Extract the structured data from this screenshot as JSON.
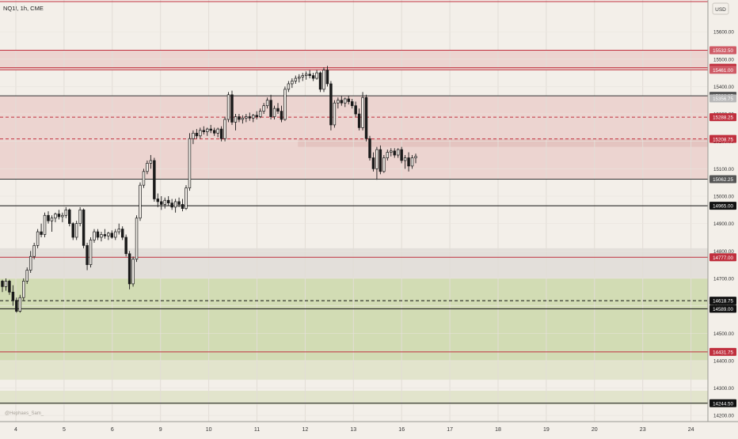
{
  "header": {
    "symbol_label": "NQ1!, 1h, CME",
    "currency": "USD"
  },
  "watermark": "@Hephaes_Sam_",
  "colors": {
    "background": "#f3efe9",
    "candle": "#1a1a1a",
    "resistance": "#c0303e",
    "support_line": "#222222",
    "red_zone": "#ecd4d0",
    "green_zone": "#d2dcb4",
    "light_green_zone": "#e2e4cc",
    "gray_zone": "#e6e2dc"
  },
  "chart_data": {
    "type": "candlestick",
    "title": "NQ1!, 1h, CME",
    "y_axis": {
      "unit": "USD",
      "range": [
        14195,
        15715
      ],
      "tick_labels": [
        "15600.00",
        "15500.00",
        "15400.00",
        "15300.00",
        "15200.00",
        "15100.00",
        "15000.00",
        "14900.00",
        "14800.00",
        "14700.00",
        "14600.00",
        "14500.00",
        "14400.00",
        "14300.00",
        "14200.00"
      ],
      "tick_values": [
        15600,
        15500,
        15400,
        15300,
        15200,
        15100,
        15000,
        14900,
        14800,
        14700,
        14600,
        14500,
        14400,
        14300,
        14200
      ]
    },
    "x_axis": {
      "tick_labels": [
        "4",
        "5",
        "6",
        "9",
        "10",
        "11",
        "12",
        "13",
        "16",
        "17",
        "18",
        "19",
        "20",
        "23",
        "24"
      ],
      "tick_positions_days": [
        0,
        1,
        2,
        3,
        4,
        5,
        6,
        7,
        8,
        9,
        10,
        11,
        12,
        13,
        14
      ]
    },
    "price_lines": [
      {
        "value": 15532.5,
        "label": "15532.50",
        "style": "solid",
        "color": "#c0303e",
        "tag_color": "#cf5b66"
      },
      {
        "value": 15468.75,
        "label": "15468.75",
        "style": "solid",
        "color": "#c0303e",
        "tag_color": "#c0303e"
      },
      {
        "value": 15461.0,
        "label": "15461.00",
        "style": "solid",
        "color": "#c0303e",
        "tag_color": "#cf5b66"
      },
      {
        "value": 15366.25,
        "label": "15366.25",
        "style": "solid",
        "color": "#333333",
        "tag_color": "#555555"
      },
      {
        "value": 15356.75,
        "label": "15356.75",
        "style": "none",
        "color": "#999999",
        "tag_color": "#b8b8b8"
      },
      {
        "value": 15288.25,
        "label": "15288.25",
        "style": "dashed",
        "color": "#c0303e",
        "tag_color": "#c0303e"
      },
      {
        "value": 15208.75,
        "label": "15208.75",
        "style": "dashed",
        "color": "#c0303e",
        "tag_color": "#c0303e"
      },
      {
        "value": 15062.25,
        "label": "15062.25",
        "style": "solid",
        "color": "#333333",
        "tag_color": "#555555"
      },
      {
        "value": 14965.0,
        "label": "14965.00",
        "style": "solid",
        "color": "#111111",
        "tag_color": "#111111"
      },
      {
        "value": 14777.0,
        "label": "14777.00",
        "style": "solid",
        "color": "#c0303e",
        "tag_color": "#c0303e"
      },
      {
        "value": 14618.75,
        "label": "14618.75",
        "style": "dashed",
        "color": "#111111",
        "tag_color": "#111111"
      },
      {
        "value": 14589.0,
        "label": "14589.00",
        "style": "solid",
        "color": "#111111",
        "tag_color": "#111111"
      },
      {
        "value": 14431.75,
        "label": "14431.75",
        "style": "solid",
        "color": "#c0303e",
        "tag_color": "#c0303e"
      },
      {
        "value": 14244.5,
        "label": "14244.50",
        "style": "solid",
        "color": "#111111",
        "tag_color": "#111111"
      }
    ],
    "top_line": {
      "value": 15710,
      "color": "#c0303e"
    },
    "zones": [
      {
        "from": 15461,
        "to": 15532.5,
        "color": "#ecd4d0"
      },
      {
        "from": 15062.25,
        "to": 15366.25,
        "color": "#ecd4d0"
      },
      {
        "from": 15180,
        "to": 15208.75,
        "color": "#e4c4c0",
        "start_day": 5.85
      },
      {
        "from": 14777,
        "to": 14810,
        "color": "#e3dfda"
      },
      {
        "from": 14700,
        "to": 14777,
        "color": "#e3dfda"
      },
      {
        "from": 14400,
        "to": 14700,
        "color": "#d2dcb4"
      },
      {
        "from": 14330,
        "to": 14400,
        "color": "#e2e4cc"
      },
      {
        "from": 14240,
        "to": 14290,
        "color": "#e2e4cc"
      }
    ],
    "vertical_grid_days": [
      0,
      1,
      2,
      3,
      4,
      5,
      6,
      7,
      8,
      9,
      10,
      11,
      12,
      13,
      14
    ],
    "candles": [
      [
        14690,
        14695,
        14650,
        14670
      ],
      [
        14670,
        14700,
        14655,
        14690
      ],
      [
        14690,
        14695,
        14640,
        14650
      ],
      [
        14650,
        14675,
        14600,
        14620
      ],
      [
        14620,
        14630,
        14575,
        14580
      ],
      [
        14580,
        14640,
        14575,
        14630
      ],
      [
        14630,
        14700,
        14620,
        14690
      ],
      [
        14690,
        14740,
        14680,
        14730
      ],
      [
        14730,
        14800,
        14720,
        14780
      ],
      [
        14780,
        14830,
        14770,
        14820
      ],
      [
        14820,
        14880,
        14810,
        14870
      ],
      [
        14870,
        14900,
        14850,
        14860
      ],
      [
        14860,
        14940,
        14850,
        14930
      ],
      [
        14930,
        14945,
        14900,
        14910
      ],
      [
        14910,
        14930,
        14870,
        14920
      ],
      [
        14920,
        14940,
        14905,
        14935
      ],
      [
        14935,
        14950,
        14915,
        14925
      ],
      [
        14925,
        14940,
        14905,
        14930
      ],
      [
        14930,
        14960,
        14920,
        14950
      ],
      [
        14950,
        14955,
        14890,
        14900
      ],
      [
        14900,
        14905,
        14840,
        14850
      ],
      [
        14850,
        14910,
        14840,
        14900
      ],
      [
        14900,
        14960,
        14890,
        14950
      ],
      [
        14950,
        14955,
        14810,
        14820
      ],
      [
        14820,
        14830,
        14730,
        14750
      ],
      [
        14750,
        14850,
        14740,
        14840
      ],
      [
        14840,
        14880,
        14830,
        14870
      ],
      [
        14870,
        14880,
        14840,
        14850
      ],
      [
        14850,
        14870,
        14835,
        14860
      ],
      [
        14860,
        14880,
        14845,
        14855
      ],
      [
        14855,
        14870,
        14840,
        14865
      ],
      [
        14865,
        14875,
        14845,
        14850
      ],
      [
        14850,
        14880,
        14840,
        14870
      ],
      [
        14870,
        14900,
        14860,
        14880
      ],
      [
        14880,
        14890,
        14840,
        14850
      ],
      [
        14850,
        14860,
        14780,
        14790
      ],
      [
        14790,
        14800,
        14660,
        14680
      ],
      [
        14680,
        14780,
        14670,
        14770
      ],
      [
        14770,
        14930,
        14760,
        14920
      ],
      [
        14920,
        15050,
        14910,
        15040
      ],
      [
        15040,
        15100,
        15030,
        15090
      ],
      [
        15090,
        15130,
        15080,
        15120
      ],
      [
        15120,
        15150,
        15100,
        15130
      ],
      [
        15130,
        15140,
        14980,
        14990
      ],
      [
        14990,
        15010,
        14960,
        14980
      ],
      [
        14980,
        15000,
        14950,
        14970
      ],
      [
        14970,
        14995,
        14955,
        14985
      ],
      [
        14985,
        15000,
        14965,
        14975
      ],
      [
        14975,
        14990,
        14950,
        14960
      ],
      [
        14960,
        14990,
        14940,
        14980
      ],
      [
        14980,
        14995,
        14960,
        14970
      ],
      [
        14970,
        14990,
        14945,
        14955
      ],
      [
        14955,
        15040,
        14950,
        15030
      ],
      [
        15030,
        15230,
        15020,
        15210
      ],
      [
        15210,
        15240,
        15190,
        15230
      ],
      [
        15230,
        15245,
        15210,
        15220
      ],
      [
        15220,
        15250,
        15210,
        15240
      ],
      [
        15240,
        15255,
        15225,
        15235
      ],
      [
        15235,
        15250,
        15220,
        15245
      ],
      [
        15245,
        15260,
        15230,
        15240
      ],
      [
        15240,
        15250,
        15220,
        15230
      ],
      [
        15230,
        15250,
        15215,
        15245
      ],
      [
        15245,
        15255,
        15200,
        15210
      ],
      [
        15210,
        15290,
        15200,
        15280
      ],
      [
        15280,
        15380,
        15270,
        15370
      ],
      [
        15370,
        15385,
        15260,
        15270
      ],
      [
        15270,
        15300,
        15240,
        15290
      ],
      [
        15290,
        15300,
        15270,
        15280
      ],
      [
        15280,
        15295,
        15265,
        15285
      ],
      [
        15285,
        15300,
        15270,
        15290
      ],
      [
        15290,
        15305,
        15275,
        15285
      ],
      [
        15285,
        15300,
        15270,
        15295
      ],
      [
        15295,
        15310,
        15280,
        15290
      ],
      [
        15290,
        15320,
        15285,
        15310
      ],
      [
        15310,
        15340,
        15300,
        15330
      ],
      [
        15330,
        15360,
        15320,
        15350
      ],
      [
        15350,
        15370,
        15280,
        15290
      ],
      [
        15290,
        15330,
        15280,
        15320
      ],
      [
        15320,
        15340,
        15300,
        15310
      ],
      [
        15310,
        15330,
        15270,
        15280
      ],
      [
        15280,
        15400,
        15275,
        15390
      ],
      [
        15390,
        15420,
        15380,
        15410
      ],
      [
        15410,
        15430,
        15395,
        15420
      ],
      [
        15420,
        15440,
        15410,
        15430
      ],
      [
        15430,
        15445,
        15415,
        15435
      ],
      [
        15435,
        15450,
        15420,
        15440
      ],
      [
        15440,
        15455,
        15425,
        15445
      ],
      [
        15445,
        15460,
        15430,
        15440
      ],
      [
        15440,
        15450,
        15420,
        15430
      ],
      [
        15430,
        15460,
        15425,
        15450
      ],
      [
        15450,
        15455,
        15380,
        15390
      ],
      [
        15390,
        15470,
        15380,
        15460
      ],
      [
        15460,
        15475,
        15400,
        15410
      ],
      [
        15410,
        15420,
        15240,
        15260
      ],
      [
        15260,
        15350,
        15250,
        15340
      ],
      [
        15340,
        15360,
        15320,
        15350
      ],
      [
        15350,
        15365,
        15330,
        15340
      ],
      [
        15340,
        15360,
        15325,
        15355
      ],
      [
        15355,
        15365,
        15335,
        15345
      ],
      [
        15345,
        15355,
        15320,
        15330
      ],
      [
        15330,
        15345,
        15290,
        15300
      ],
      [
        15300,
        15320,
        15240,
        15250
      ],
      [
        15250,
        15380,
        15240,
        15360
      ],
      [
        15360,
        15370,
        15200,
        15210
      ],
      [
        15210,
        15220,
        15130,
        15140
      ],
      [
        15140,
        15160,
        15090,
        15100
      ],
      [
        15100,
        15180,
        15060,
        15170
      ],
      [
        15170,
        15185,
        15080,
        15090
      ],
      [
        15090,
        15150,
        15085,
        15140
      ],
      [
        15140,
        15170,
        15130,
        15160
      ],
      [
        15160,
        15175,
        15145,
        15165
      ],
      [
        15165,
        15175,
        15140,
        15150
      ],
      [
        15150,
        15175,
        15140,
        15170
      ],
      [
        15170,
        15180,
        15120,
        15130
      ],
      [
        15130,
        15150,
        15100,
        15140
      ],
      [
        15140,
        15160,
        15090,
        15110
      ],
      [
        15110,
        15150,
        15100,
        15140
      ],
      [
        15140,
        15155,
        15120,
        15145
      ]
    ]
  }
}
